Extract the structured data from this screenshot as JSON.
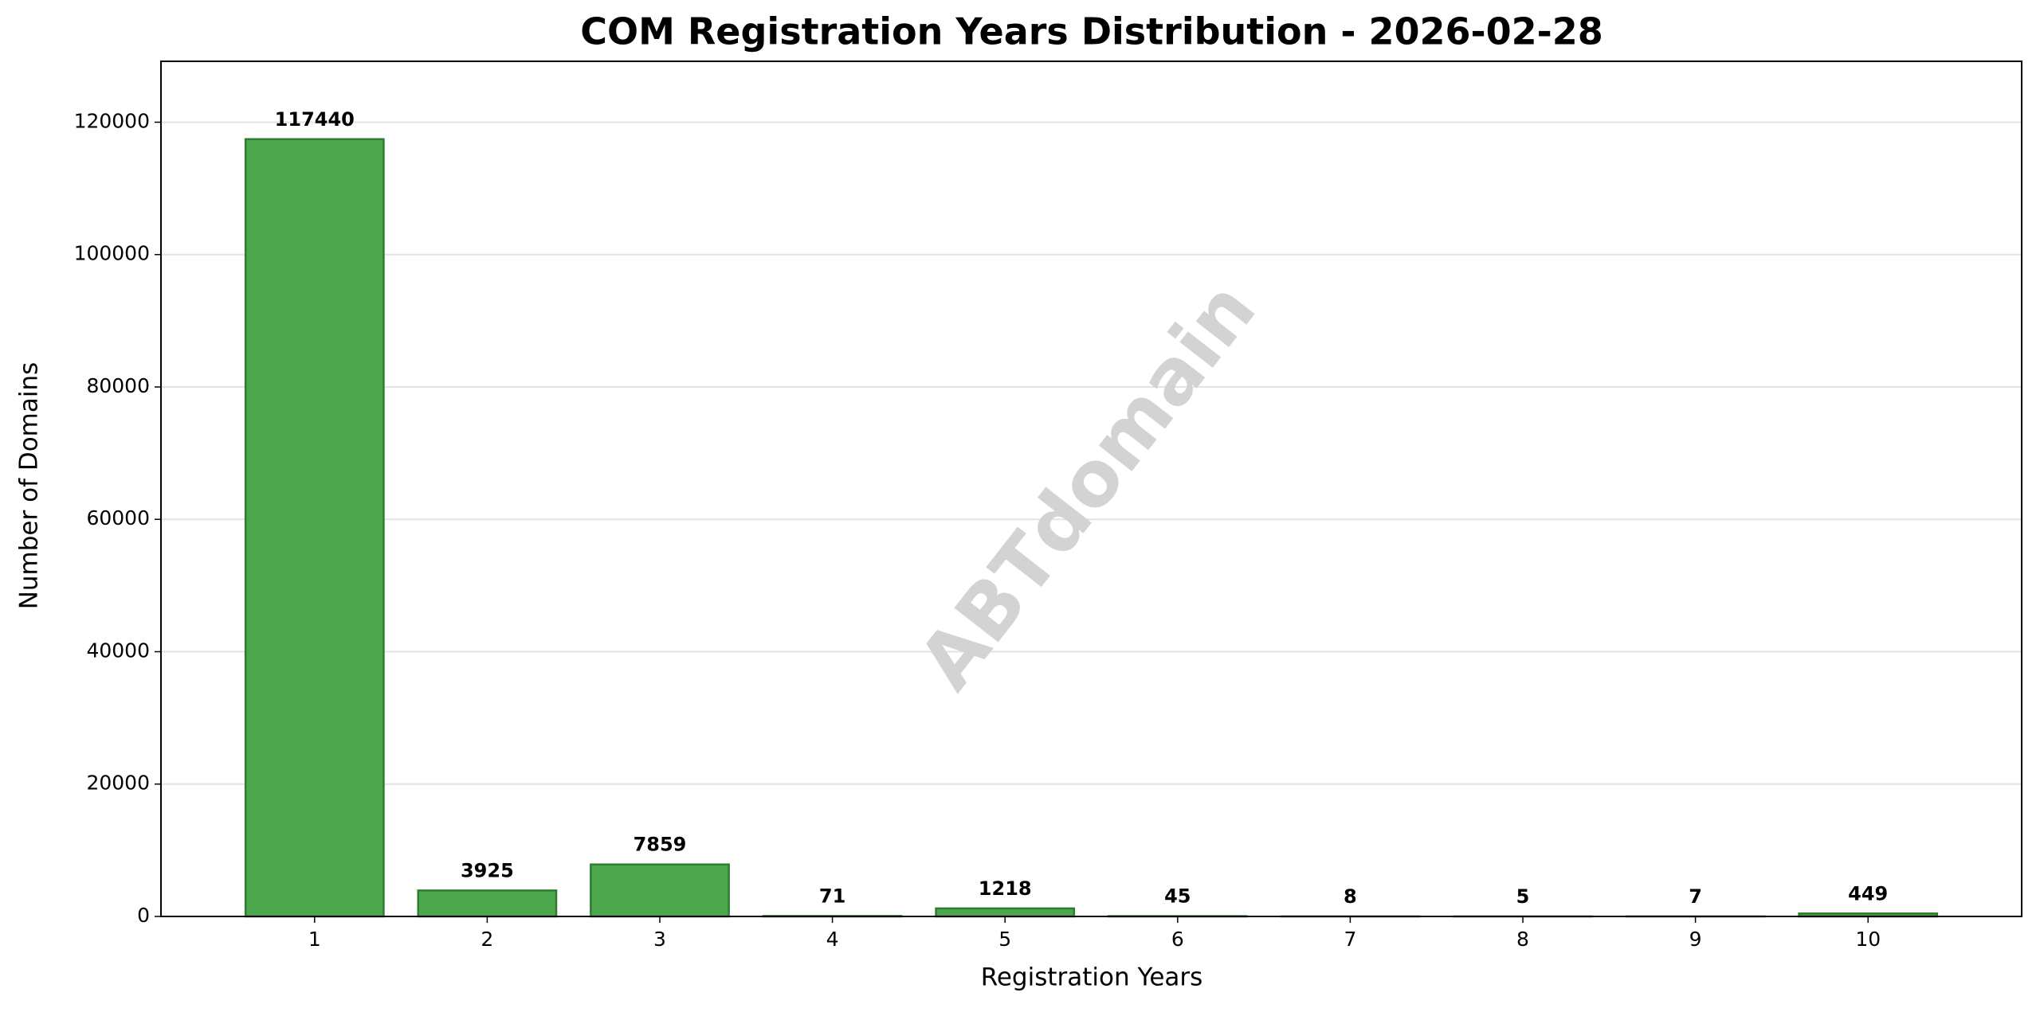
{
  "chart_data": {
    "type": "bar",
    "title": "COM Registration Years Distribution - 2026-02-28",
    "x_label": "Registration Years",
    "y_label": "Number of Domains",
    "watermark": "ABTdomain",
    "x": [
      1,
      2,
      3,
      4,
      5,
      6,
      7,
      8,
      9,
      10
    ],
    "values": [
      117440,
      3925,
      7859,
      71,
      1218,
      45,
      8,
      5,
      7,
      449
    ],
    "color": "#4ca64c",
    "edge_color": "#2e7d32",
    "bar_width": 0.8,
    "xlim": [
      0.11,
      10.89
    ],
    "xticks": [
      1,
      2,
      3,
      4,
      5,
      6,
      7,
      8,
      9,
      10
    ],
    "ylim": [
      0,
      129200
    ],
    "yticks": [
      0,
      20000,
      40000,
      60000,
      80000,
      100000,
      120000
    ],
    "grid": true
  }
}
